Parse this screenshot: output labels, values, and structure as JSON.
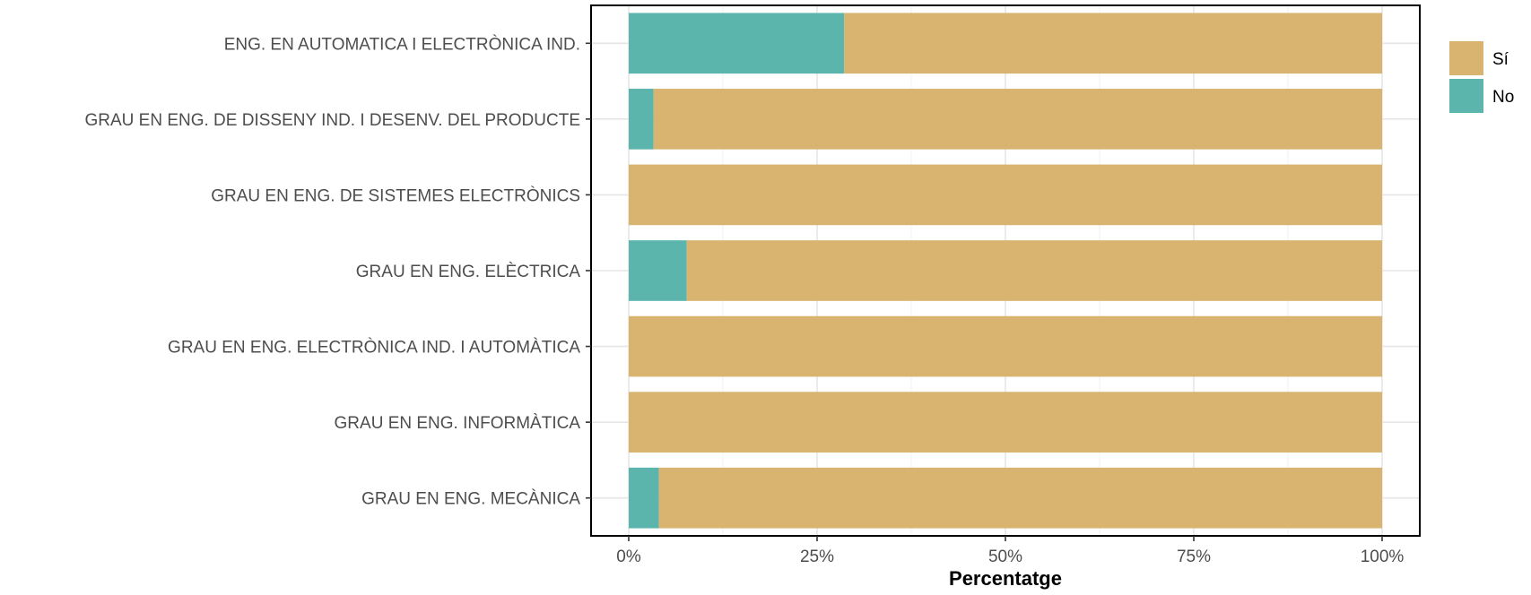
{
  "chart_data": {
    "type": "bar",
    "orientation": "horizontal",
    "stacked": true,
    "categories": [
      "ENG. EN AUTOMATICA I ELECTRÒNICA IND.",
      "GRAU EN ENG. DE DISSENY IND. I DESENV. DEL PRODUCTE",
      "GRAU EN ENG. DE SISTEMES ELECTRÒNICS",
      "GRAU EN ENG. ELÈCTRICA",
      "GRAU EN ENG. ELECTRÒNICA IND. I AUTOMÀTICA",
      "GRAU EN ENG. INFORMÀTICA",
      "GRAU EN ENG. MECÀNICA"
    ],
    "series": [
      {
        "name": "No",
        "color": "#5bb5ad",
        "values": [
          28.6,
          3.3,
          0,
          7.7,
          0,
          0,
          4.0
        ]
      },
      {
        "name": "Sí",
        "color": "#d8b470",
        "values": [
          71.4,
          96.7,
          100,
          92.3,
          100,
          100,
          96.0
        ]
      }
    ],
    "xlabel": "Percentatge",
    "ylabel": "",
    "xlim": [
      0,
      100
    ],
    "xticks": [
      {
        "value": 0,
        "label": "0%"
      },
      {
        "value": 25,
        "label": "25%"
      },
      {
        "value": 50,
        "label": "50%"
      },
      {
        "value": 75,
        "label": "75%"
      },
      {
        "value": 100,
        "label": "100%"
      }
    ],
    "grid": true,
    "legend": {
      "position": "right",
      "entries": [
        {
          "name": "Sí",
          "color": "#d8b470"
        },
        {
          "name": "No",
          "color": "#5bb5ad"
        }
      ]
    }
  }
}
